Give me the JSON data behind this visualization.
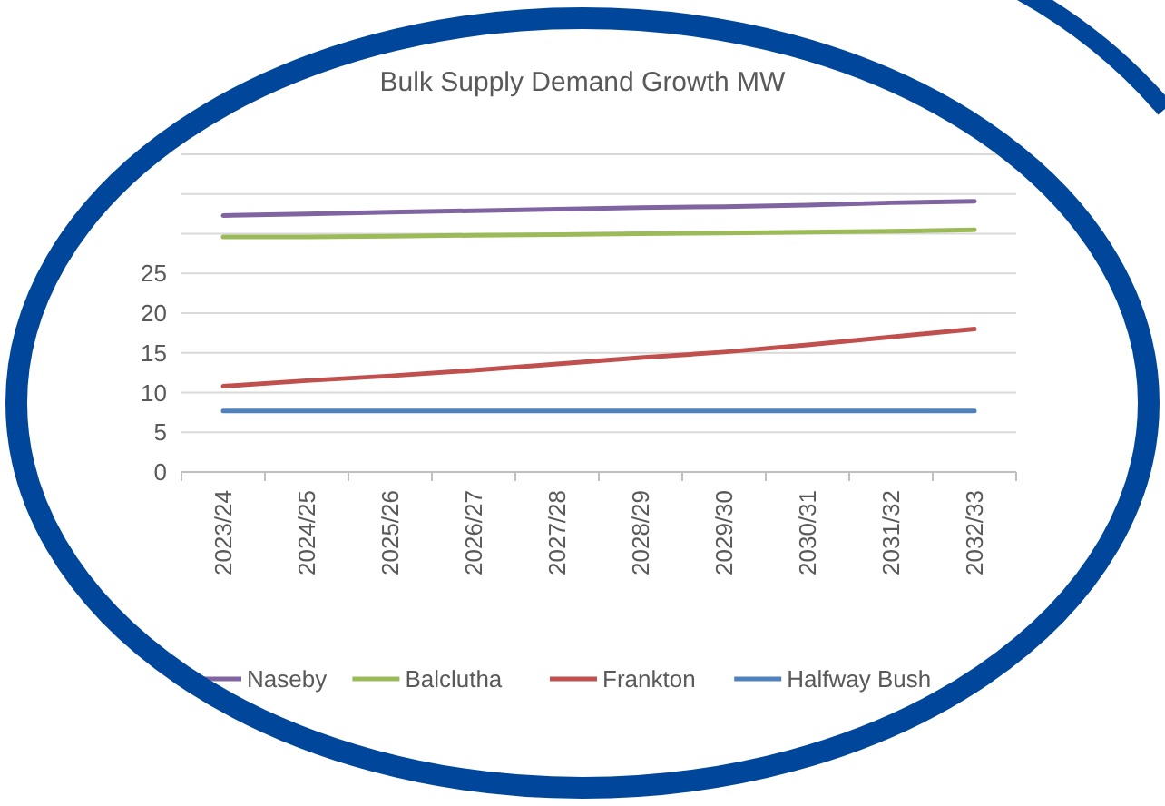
{
  "chart_data": {
    "type": "line",
    "title": "Bulk Supply Demand Growth MW",
    "categories": [
      "2023/24",
      "2024/25",
      "2025/26",
      "2026/27",
      "2027/28",
      "2028/29",
      "2029/30",
      "2030/31",
      "2031/32",
      "2032/33"
    ],
    "series": [
      {
        "name": "Naseby",
        "color": "#8064a2",
        "values": [
          32.3,
          32.5,
          32.7,
          32.9,
          33.1,
          33.3,
          33.4,
          33.6,
          33.9,
          34.1
        ]
      },
      {
        "name": "Balclutha",
        "color": "#9bbb59",
        "values": [
          29.6,
          29.6,
          29.7,
          29.8,
          29.9,
          30.0,
          30.1,
          30.2,
          30.3,
          30.5
        ]
      },
      {
        "name": "Frankton",
        "color": "#c0504d",
        "values": [
          10.8,
          11.5,
          12.1,
          12.8,
          13.6,
          14.4,
          15.1,
          16.0,
          17.0,
          18.0
        ]
      },
      {
        "name": "Halfway Bush",
        "color": "#4f81bd",
        "values": [
          7.7,
          7.7,
          7.7,
          7.7,
          7.7,
          7.7,
          7.7,
          7.7,
          7.7,
          7.7
        ]
      }
    ],
    "ylim": [
      0,
      40
    ],
    "yticks": [
      0,
      5,
      10,
      15,
      20,
      25,
      {
        "value": 30,
        "label": null
      },
      {
        "value": 35,
        "label": null
      },
      {
        "value": 40,
        "label": null
      }
    ],
    "grid": "y",
    "legend": "bottom",
    "marker": "none",
    "line_style": "solid"
  }
}
